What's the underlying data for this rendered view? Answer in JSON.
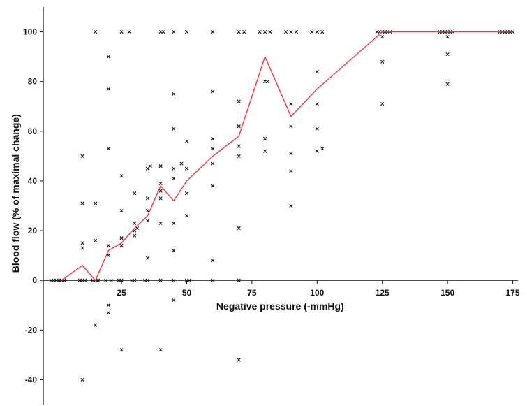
{
  "chart_data": {
    "type": "scatter",
    "title": "",
    "xlabel": "Negative pressure (-mmHg)",
    "ylabel": "Blood flow (% of maximal change)",
    "xlim": [
      -5,
      177
    ],
    "ylim": [
      -50,
      110
    ],
    "x_ticks": [
      25,
      50,
      75,
      100,
      125,
      150,
      175
    ],
    "y_ticks": [
      -40,
      -20,
      0,
      20,
      40,
      60,
      80,
      100
    ],
    "grid": false,
    "legend": "none",
    "colors": {
      "points": "#111111",
      "line": "#ff3333",
      "axis": "#111111"
    },
    "series": [
      {
        "type": "scatter",
        "marker": "x",
        "points": [
          [
            -2,
            0
          ],
          [
            -1,
            0
          ],
          [
            0,
            0
          ],
          [
            1,
            0
          ],
          [
            2,
            0
          ],
          [
            3,
            0
          ],
          [
            10,
            50
          ],
          [
            10,
            31
          ],
          [
            10,
            15
          ],
          [
            10,
            13
          ],
          [
            10,
            0
          ],
          [
            10,
            -40
          ],
          [
            9,
            0
          ],
          [
            11,
            0
          ],
          [
            15,
            100
          ],
          [
            15,
            31
          ],
          [
            15,
            16
          ],
          [
            15,
            0
          ],
          [
            15,
            -18
          ],
          [
            14,
            0
          ],
          [
            16,
            0
          ],
          [
            20,
            90
          ],
          [
            20,
            77
          ],
          [
            20,
            53
          ],
          [
            20,
            14
          ],
          [
            20,
            10
          ],
          [
            20,
            -10
          ],
          [
            20,
            -13
          ],
          [
            19,
            0
          ],
          [
            21,
            0
          ],
          [
            25,
            100
          ],
          [
            25,
            42
          ],
          [
            25,
            28
          ],
          [
            25,
            17
          ],
          [
            25,
            14
          ],
          [
            25,
            0
          ],
          [
            25,
            -28
          ],
          [
            24,
            0
          ],
          [
            28,
            100
          ],
          [
            30,
            35
          ],
          [
            30,
            23
          ],
          [
            30,
            20
          ],
          [
            30,
            18
          ],
          [
            30,
            0
          ],
          [
            31,
            21
          ],
          [
            29,
            0
          ],
          [
            35,
            45
          ],
          [
            35,
            45
          ],
          [
            35,
            33
          ],
          [
            35,
            28
          ],
          [
            35,
            24
          ],
          [
            35,
            9
          ],
          [
            35,
            0
          ],
          [
            36,
            46
          ],
          [
            34,
            0
          ],
          [
            40,
            100
          ],
          [
            41,
            100
          ],
          [
            40,
            46
          ],
          [
            40,
            39
          ],
          [
            40,
            36
          ],
          [
            40,
            33
          ],
          [
            40,
            23
          ],
          [
            40,
            0
          ],
          [
            40,
            -28
          ],
          [
            45,
            100
          ],
          [
            45,
            75
          ],
          [
            45,
            61
          ],
          [
            45,
            45
          ],
          [
            45,
            41
          ],
          [
            45,
            23
          ],
          [
            45,
            12
          ],
          [
            45,
            0
          ],
          [
            45,
            -8
          ],
          [
            48,
            47
          ],
          [
            50,
            100
          ],
          [
            50,
            56
          ],
          [
            50,
            45
          ],
          [
            50,
            35
          ],
          [
            50,
            26
          ],
          [
            50,
            0
          ],
          [
            51,
            0
          ],
          [
            60,
            100
          ],
          [
            60,
            76
          ],
          [
            60,
            57
          ],
          [
            60,
            53
          ],
          [
            60,
            47
          ],
          [
            60,
            38
          ],
          [
            60,
            8
          ],
          [
            60,
            0
          ],
          [
            70,
            100
          ],
          [
            72,
            100
          ],
          [
            70,
            72
          ],
          [
            70,
            62
          ],
          [
            70,
            54
          ],
          [
            70,
            50
          ],
          [
            70,
            21
          ],
          [
            70,
            0
          ],
          [
            70,
            -32
          ],
          [
            78,
            100
          ],
          [
            80,
            100
          ],
          [
            82,
            100
          ],
          [
            80,
            80
          ],
          [
            81,
            80
          ],
          [
            80,
            57
          ],
          [
            80,
            52
          ],
          [
            88,
            100
          ],
          [
            90,
            100
          ],
          [
            92,
            100
          ],
          [
            90,
            71
          ],
          [
            90,
            62
          ],
          [
            90,
            51
          ],
          [
            90,
            44
          ],
          [
            90,
            30
          ],
          [
            98,
            100
          ],
          [
            100,
            100
          ],
          [
            102,
            100
          ],
          [
            100,
            84
          ],
          [
            100,
            71
          ],
          [
            100,
            61
          ],
          [
            100,
            52
          ],
          [
            102,
            53
          ],
          [
            123,
            100
          ],
          [
            124,
            100
          ],
          [
            125,
            100
          ],
          [
            126,
            100
          ],
          [
            127,
            100
          ],
          [
            128,
            100
          ],
          [
            125,
            98
          ],
          [
            125,
            88
          ],
          [
            125,
            71
          ],
          [
            147,
            100
          ],
          [
            148,
            100
          ],
          [
            149,
            100
          ],
          [
            150,
            100
          ],
          [
            151,
            100
          ],
          [
            152,
            100
          ],
          [
            150,
            98
          ],
          [
            150,
            91
          ],
          [
            150,
            79
          ],
          [
            170,
            100
          ],
          [
            171,
            100
          ],
          [
            172,
            100
          ],
          [
            173,
            100
          ],
          [
            174,
            100
          ],
          [
            175,
            100
          ]
        ]
      },
      {
        "type": "line",
        "points": [
          [
            2,
            0
          ],
          [
            10,
            6
          ],
          [
            15,
            0
          ],
          [
            20,
            12
          ],
          [
            25,
            15
          ],
          [
            30,
            21
          ],
          [
            35,
            26
          ],
          [
            40,
            38
          ],
          [
            45,
            32
          ],
          [
            50,
            40
          ],
          [
            60,
            50
          ],
          [
            70,
            58
          ],
          [
            80,
            90
          ],
          [
            90,
            66
          ],
          [
            100,
            77
          ],
          [
            125,
            100
          ],
          [
            150,
            100
          ],
          [
            175,
            100
          ]
        ]
      }
    ]
  }
}
